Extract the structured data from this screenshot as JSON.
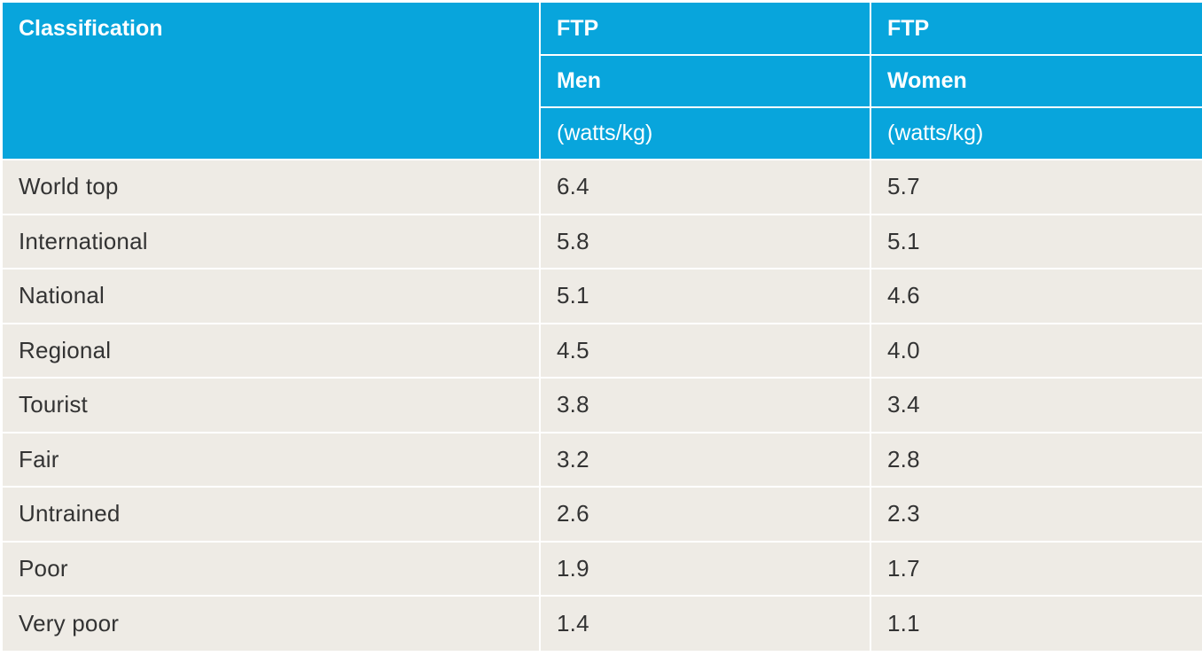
{
  "table": {
    "header": {
      "classification": "Classification",
      "men_top": "FTP",
      "women_top": "FTP",
      "men_mid": "Men",
      "women_mid": "Women",
      "men_unit": "(watts/kg)",
      "women_unit": "(watts/kg)"
    },
    "rows": [
      {
        "classification": "World top",
        "men": "6.4",
        "women": "5.7"
      },
      {
        "classification": "International",
        "men": "5.8",
        "women": "5.1"
      },
      {
        "classification": "National",
        "men": "5.1",
        "women": "4.6"
      },
      {
        "classification": "Regional",
        "men": "4.5",
        "women": "4.0"
      },
      {
        "classification": "Tourist",
        "men": "3.8",
        "women": "3.4"
      },
      {
        "classification": "Fair",
        "men": "3.2",
        "women": "2.8"
      },
      {
        "classification": "Untrained",
        "men": "2.6",
        "women": "2.3"
      },
      {
        "classification": "Poor",
        "men": "1.9",
        "women": "1.7"
      },
      {
        "classification": "Very poor",
        "men": "1.4",
        "women": "1.1"
      }
    ]
  },
  "colors": {
    "header_bg": "#08a5dc",
    "header_text": "#ffffff",
    "body_bg": "#eeebe5",
    "body_text": "#333333"
  }
}
